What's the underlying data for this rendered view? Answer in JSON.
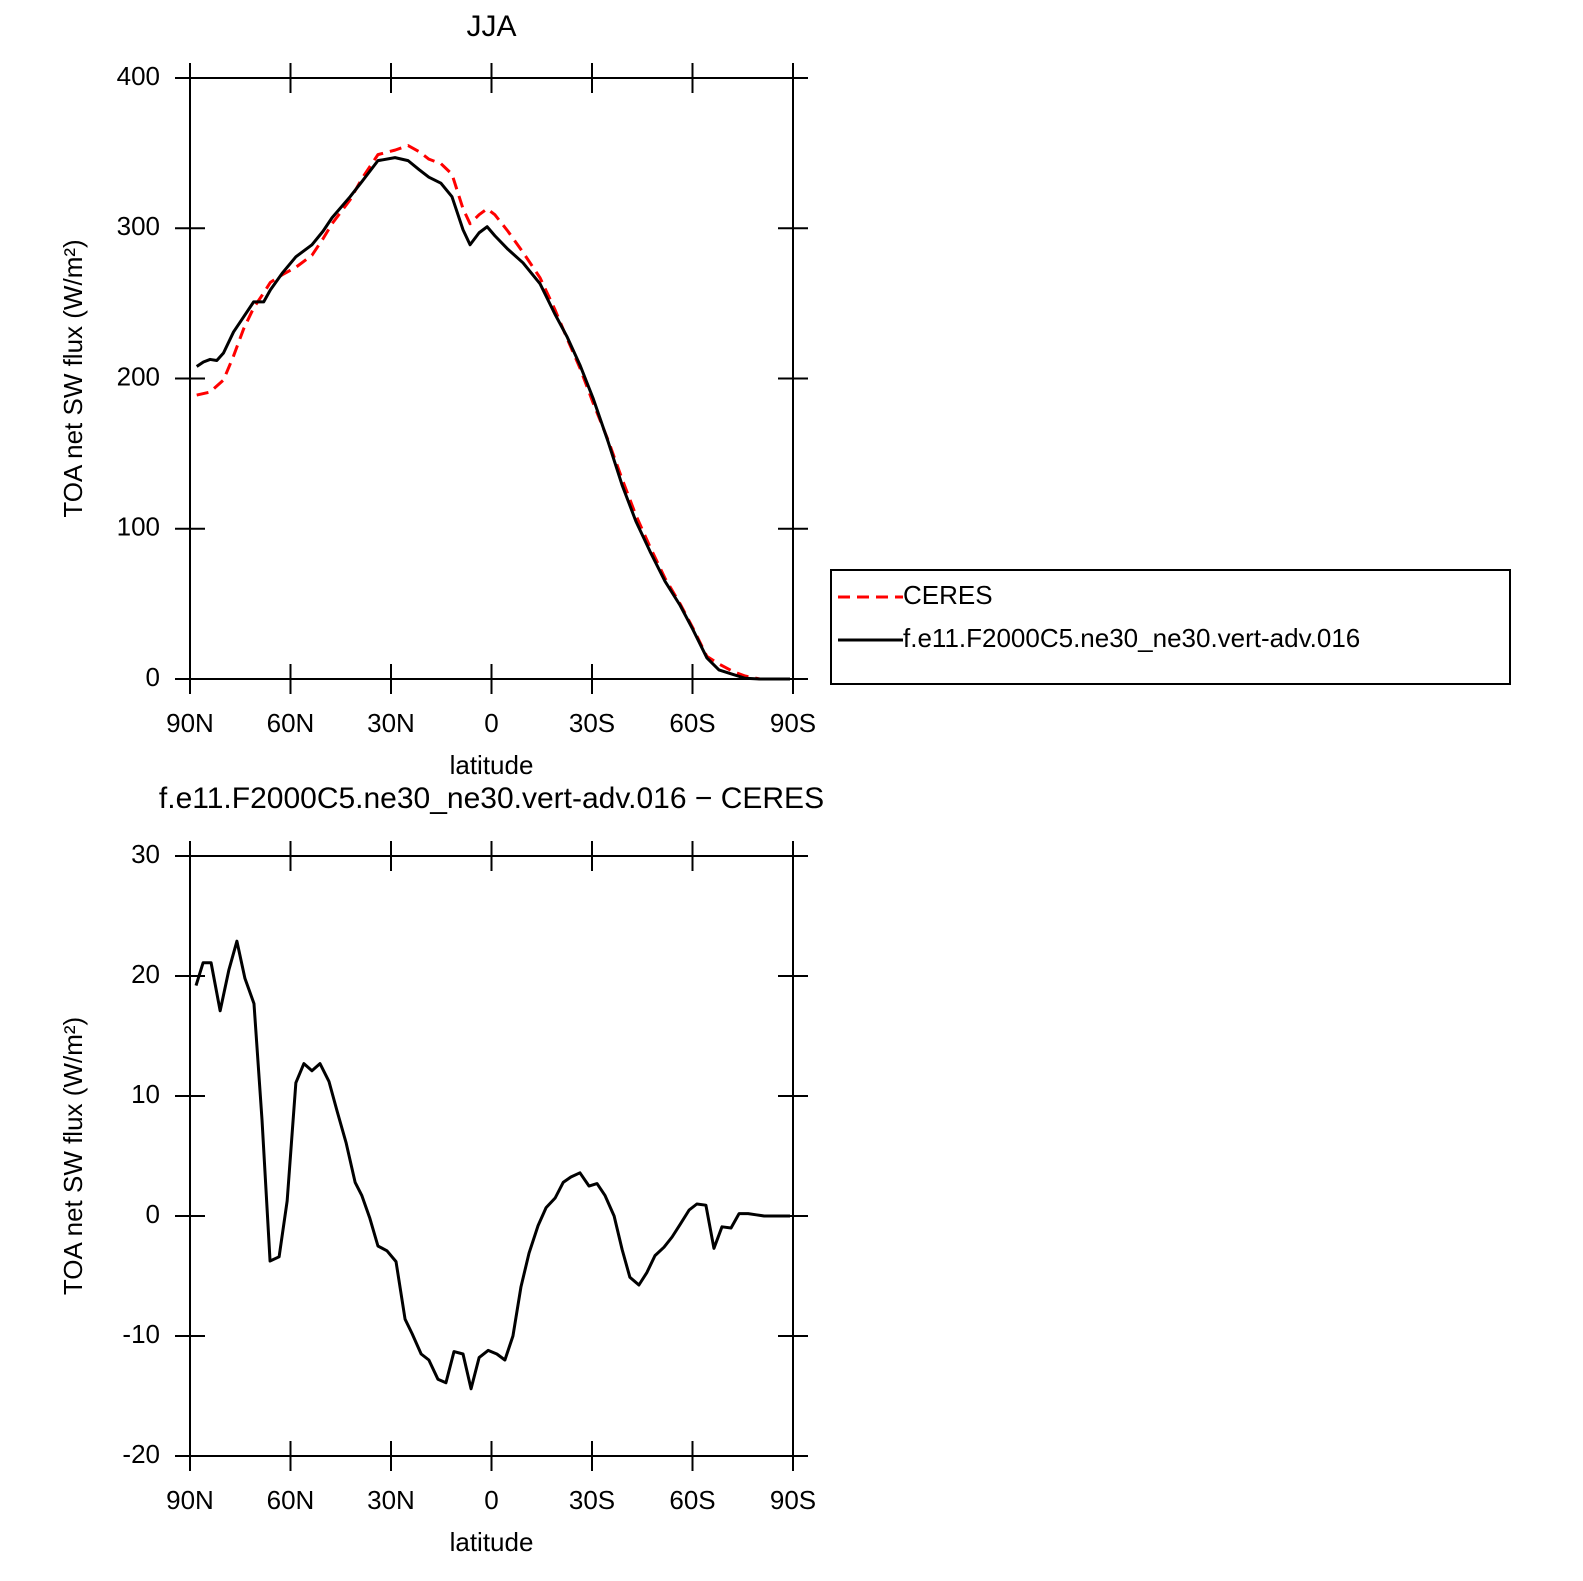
{
  "chart_data": [
    {
      "type": "line",
      "title": "JJA",
      "xlabel": "latitude",
      "ylabel": "TOA net SW flux (W/m²)",
      "x": [
        88,
        86,
        84,
        82,
        80,
        77,
        74,
        71,
        68,
        66,
        62.5,
        58.4,
        53.6,
        50.3,
        47.6,
        42.2,
        38.7,
        33.9,
        28.8,
        24.9,
        21.6,
        18.7,
        15.1,
        11.8,
        8.5,
        6.4,
        3.7,
        1.3,
        -1,
        -4.9,
        -9.4,
        -14.5,
        -18.9,
        -22.5,
        -26.4,
        -30.3,
        -34.8,
        -39,
        -43.1,
        -47.3,
        -51.8,
        -56.3,
        -60.1,
        -64.3,
        -67.9,
        -72.1,
        -75.7,
        -80.1,
        -86.1,
        -89.1
      ],
      "series": [
        {
          "name": "CERES",
          "color": "#ff0000",
          "linestyle": "dashed",
          "values": [
            189,
            190,
            191,
            195,
            199,
            215,
            233,
            247,
            257,
            264,
            269,
            274,
            282,
            293,
            303,
            319,
            333,
            349,
            352,
            355,
            351,
            346,
            343,
            336,
            313,
            303,
            309,
            313,
            309,
            298,
            284,
            267,
            246,
            227,
            207,
            184,
            159,
            133,
            109,
            88,
            67,
            50,
            34,
            15,
            10,
            5,
            2,
            0,
            0,
            0
          ]
        },
        {
          "name": "f.e11.F2000C5.ne30_ne30.vert-adv.016",
          "color": "#000000",
          "linestyle": "solid",
          "values": [
            208,
            211,
            212.7,
            212,
            217,
            231,
            241,
            251,
            251,
            259,
            270,
            281,
            289,
            298,
            307,
            321,
            331,
            345,
            347,
            345,
            339,
            334,
            330,
            321,
            299,
            289,
            297,
            301,
            295,
            286,
            277,
            263,
            243,
            228,
            209,
            187,
            158,
            129,
            105,
            85,
            65,
            49,
            33,
            14,
            6,
            3,
            0.5,
            0,
            0,
            0
          ]
        }
      ],
      "xlim": [
        90,
        -90
      ],
      "xticks": [
        {
          "value": 90,
          "label": "90N"
        },
        {
          "value": 60,
          "label": "60N"
        },
        {
          "value": 30,
          "label": "30N"
        },
        0,
        {
          "value": -30,
          "label": "30S"
        },
        {
          "value": -60,
          "label": "60S"
        },
        {
          "value": -90,
          "label": "90S"
        }
      ],
      "ylim": [
        0,
        400
      ],
      "yticks": [
        0,
        100,
        200,
        300,
        400
      ],
      "legend": "outside-right"
    },
    {
      "type": "line",
      "title": "f.e11.F2000C5.ne30_ne30.vert-adv.016 − CERES",
      "xlabel": "latitude",
      "ylabel": "TOA net SW flux (W/m²)",
      "x": [
        88.2,
        86.1,
        83.7,
        81,
        78.4,
        76,
        73.6,
        70.9,
        68.5,
        66.1,
        63.4,
        61,
        58.4,
        56,
        53.6,
        51.2,
        48.5,
        46.1,
        43.4,
        40.7,
        38.7,
        36.3,
        33.9,
        31.2,
        28.5,
        25.8,
        23.7,
        21,
        18.7,
        16,
        13.6,
        11.2,
        8.5,
        6.1,
        3.7,
        1,
        -1.6,
        -4,
        -6.4,
        -8.8,
        -11.2,
        -13.9,
        -16.3,
        -19,
        -21.4,
        -23.7,
        -26.4,
        -29.1,
        -31.5,
        -33.9,
        -36.6,
        -39,
        -41.3,
        -44,
        -46.4,
        -48.8,
        -51.5,
        -53.9,
        -56.3,
        -59,
        -61.3,
        -64,
        -66.4,
        -68.8,
        -71.5,
        -73.9,
        -76.6,
        -79,
        -81.4,
        -84,
        -86.4,
        -89.1
      ],
      "series": [
        {
          "color": "#000000",
          "linestyle": "solid",
          "values": [
            19.2,
            21.1,
            21.1,
            17.1,
            20.5,
            22.9,
            19.8,
            17.7,
            8,
            -3.75,
            -3.4,
            1.25,
            11.1,
            12.7,
            12.1,
            12.7,
            11.2,
            8.75,
            6.1,
            2.8,
            1.7,
            -0.2,
            -2.5,
            -2.9,
            -3.8,
            -8.6,
            -9.8,
            -11.5,
            -12,
            -13.6,
            -13.9,
            -11.3,
            -11.5,
            -14.4,
            -11.8,
            -11.2,
            -11.5,
            -12,
            -10,
            -5.9,
            -3.1,
            -0.8,
            0.7,
            1.5,
            2.8,
            3.25,
            3.6,
            2.5,
            2.7,
            1.7,
            0,
            -2.8,
            -5.1,
            -5.75,
            -4.7,
            -3.3,
            -2.6,
            -1.75,
            -0.7,
            0.5,
            1,
            0.9,
            -2.7,
            -0.9,
            -1,
            0.2,
            0.2,
            0.1,
            0,
            0,
            0,
            0
          ]
        }
      ],
      "xlim": [
        90,
        -90
      ],
      "xticks": [
        {
          "value": 90,
          "label": "90N"
        },
        {
          "value": 60,
          "label": "60N"
        },
        {
          "value": 30,
          "label": "30N"
        },
        0,
        {
          "value": -30,
          "label": "30S"
        },
        {
          "value": -60,
          "label": "60S"
        },
        {
          "value": -90,
          "label": "90S"
        }
      ],
      "ylim": [
        -20,
        30
      ],
      "yticks": [
        -20,
        -10,
        0,
        10,
        20,
        30
      ]
    }
  ]
}
